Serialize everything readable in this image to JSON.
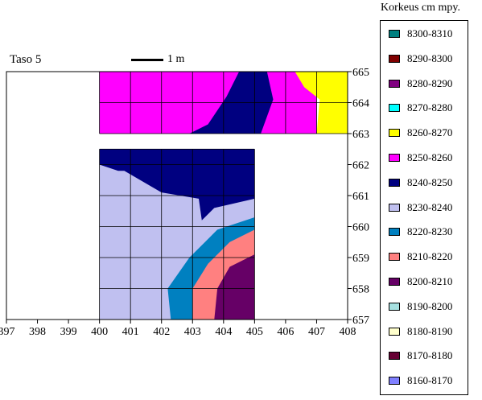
{
  "chart_data": {
    "type": "heatmap",
    "title": "Taso 5",
    "scale_label": "1 m",
    "x_ticks": [
      397,
      398,
      399,
      400,
      401,
      402,
      403,
      404,
      405,
      406,
      407,
      408
    ],
    "y_ticks": [
      657,
      658,
      659,
      660,
      661,
      662,
      663,
      664,
      665
    ],
    "xlim": [
      397,
      408
    ],
    "ylim": [
      657,
      665
    ],
    "grid": true,
    "legend_position": "right",
    "legend_title": "Korkeus cm mpy.",
    "legend": [
      {
        "label": "8300-8310",
        "color": "#008080"
      },
      {
        "label": "8290-8300",
        "color": "#800000"
      },
      {
        "label": "8280-8290",
        "color": "#800080"
      },
      {
        "label": "8270-8280",
        "color": "#00ffff"
      },
      {
        "label": "8260-8270",
        "color": "#ffff00"
      },
      {
        "label": "8250-8260",
        "color": "#ff00ff"
      },
      {
        "label": "8240-8250",
        "color": "#000080"
      },
      {
        "label": "8230-8240",
        "color": "#c0c0f0"
      },
      {
        "label": "8220-8230",
        "color": "#0080c0"
      },
      {
        "label": "8210-8220",
        "color": "#ff8080"
      },
      {
        "label": "8200-8210",
        "color": "#660066"
      },
      {
        "label": "8190-8200",
        "color": "#a6e0e0"
      },
      {
        "label": "8180-8190",
        "color": "#ffffcc"
      },
      {
        "label": "8170-8180",
        "color": "#660033"
      },
      {
        "label": "8160-8170",
        "color": "#8080ff"
      }
    ],
    "regions": [
      {
        "band": "8250-8260",
        "color": "#ff00ff",
        "polygon": [
          [
            400,
            663
          ],
          [
            400,
            665
          ],
          [
            407,
            665
          ],
          [
            407,
            663
          ]
        ]
      },
      {
        "band": "8260-8270",
        "color": "#ffff00",
        "polygon": [
          [
            406.3,
            665
          ],
          [
            408,
            665
          ],
          [
            408,
            663
          ],
          [
            407,
            663
          ],
          [
            407.1,
            664.1
          ],
          [
            406.6,
            664.5
          ]
        ]
      },
      {
        "band": "8240-8250",
        "color": "#000080",
        "polygon": [
          [
            402.9,
            663
          ],
          [
            403.5,
            663.3
          ],
          [
            404.1,
            664.2
          ],
          [
            404.5,
            665
          ],
          [
            405.4,
            665
          ],
          [
            405.6,
            664.1
          ],
          [
            405.2,
            663
          ]
        ]
      },
      {
        "band": "8230-8240",
        "color": "#c0c0f0",
        "polygon": [
          [
            400,
            657
          ],
          [
            400,
            662.5
          ],
          [
            405,
            662.5
          ],
          [
            405,
            657
          ]
        ]
      },
      {
        "band": "8240-8250",
        "color": "#000080",
        "polygon": [
          [
            400,
            662.5
          ],
          [
            405,
            662.5
          ],
          [
            405,
            660.9
          ],
          [
            403.7,
            660.6
          ],
          [
            403.3,
            660.2
          ],
          [
            403.2,
            660.9
          ],
          [
            402,
            661.1
          ],
          [
            400.8,
            661.8
          ],
          [
            400.6,
            661.8
          ],
          [
            400,
            662.0
          ]
        ]
      },
      {
        "band": "8220-8230",
        "color": "#0080c0",
        "polygon": [
          [
            402.3,
            657
          ],
          [
            402.2,
            658
          ],
          [
            402.9,
            659.0
          ],
          [
            403.8,
            659.9
          ],
          [
            405,
            660.3
          ],
          [
            405,
            657
          ]
        ]
      },
      {
        "band": "8210-8220",
        "color": "#ff8080",
        "polygon": [
          [
            403,
            657
          ],
          [
            403,
            658
          ],
          [
            403.5,
            658.8
          ],
          [
            404.2,
            659.5
          ],
          [
            405,
            659.9
          ],
          [
            405,
            657
          ]
        ]
      },
      {
        "band": "8200-8210",
        "color": "#660066",
        "polygon": [
          [
            403.7,
            657
          ],
          [
            403.8,
            658
          ],
          [
            404.2,
            658.7
          ],
          [
            405,
            659.1
          ],
          [
            405,
            657
          ]
        ]
      }
    ]
  }
}
